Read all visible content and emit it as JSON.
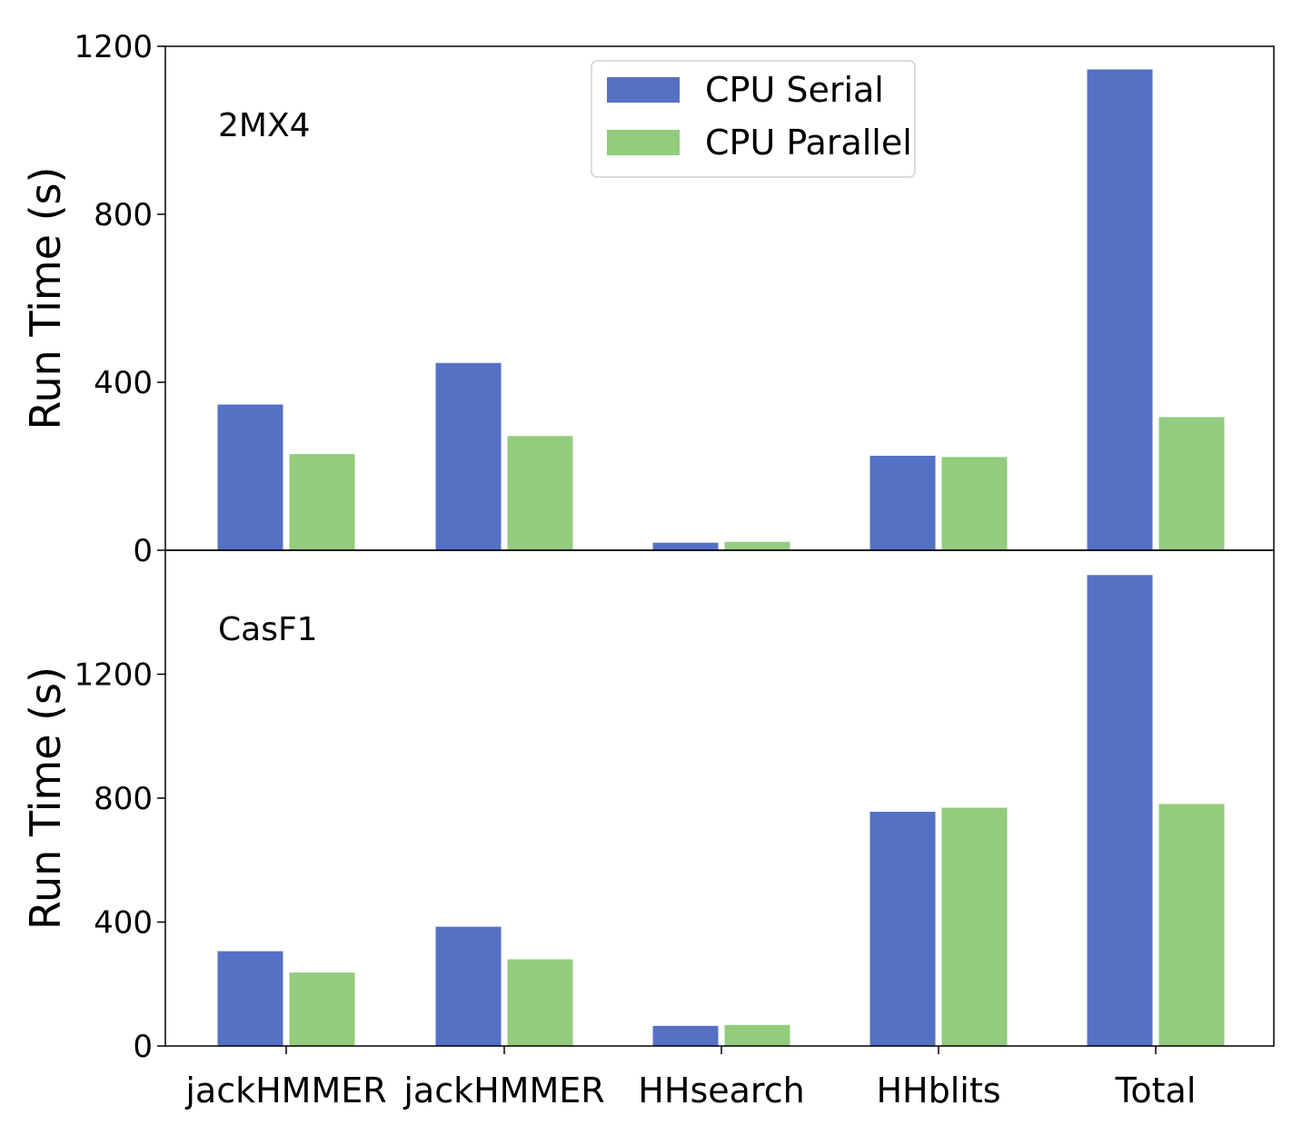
{
  "chart_data": [
    {
      "type": "bar",
      "panel_label": "2MX4",
      "categories": [
        "jackHMMER",
        "jackHMMER",
        "HHsearch",
        "HHblits",
        "Total"
      ],
      "series": [
        {
          "name": "CPU Serial",
          "color": "#5471c4",
          "values": [
            347,
            446,
            18,
            225,
            1145
          ]
        },
        {
          "name": "CPU Parallel",
          "color": "#92cc7c",
          "values": [
            229,
            272,
            20,
            222,
            317
          ]
        }
      ],
      "ylabel": "Run Time (s)",
      "ylim": [
        0,
        1200
      ],
      "yticks": [
        "0",
        "400",
        "800",
        "1200"
      ],
      "grid": false,
      "legend": "top-center"
    },
    {
      "type": "bar",
      "panel_label": "CasF1",
      "categories": [
        "jackHMMER",
        "jackHMMER",
        "HHsearch",
        "HHblits",
        "Total"
      ],
      "series": [
        {
          "name": "CPU Serial",
          "color": "#5471c4",
          "values": [
            306,
            385,
            65,
            756,
            1520
          ]
        },
        {
          "name": "CPU Parallel",
          "color": "#92cc7c",
          "values": [
            237,
            280,
            68,
            769,
            781
          ]
        }
      ],
      "xlabels": [
        "jackHMMER",
        "jackHMMER",
        "HHsearch",
        "HHblits",
        "Total"
      ],
      "ylabel": "Run Time (s)",
      "ylim": [
        0,
        1600
      ],
      "yticks": [
        "0",
        "400",
        "800",
        "1200"
      ],
      "grid": false
    }
  ],
  "legend": {
    "items": [
      {
        "label": "CPU Serial",
        "color": "#5471c4"
      },
      {
        "label": "CPU Parallel",
        "color": "#92cc7c"
      }
    ]
  }
}
